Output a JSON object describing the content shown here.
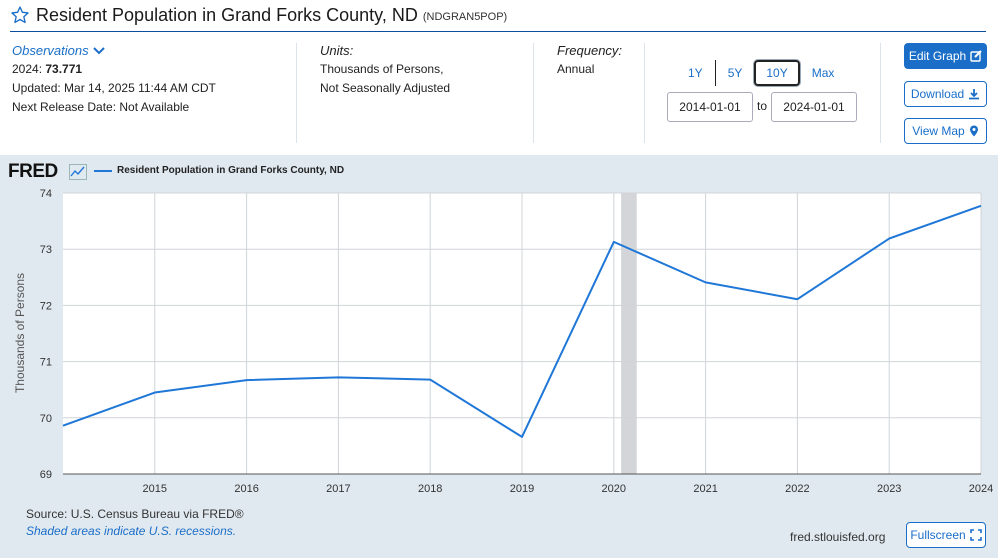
{
  "header": {
    "title": "Resident Population in Grand Forks County, ND",
    "series_code": "(NDGRAN5POP)"
  },
  "observations": {
    "label": "Observations",
    "latest_label": "2024:",
    "latest_value": "73.771",
    "updated": "Updated: Mar 14, 2025 11:44 AM CDT",
    "next_release": "Next Release Date: Not Available"
  },
  "units": {
    "label": "Units:",
    "line1": "Thousands of Persons,",
    "line2": "Not Seasonally Adjusted"
  },
  "frequency": {
    "label": "Frequency:",
    "value": "Annual"
  },
  "range": {
    "tabs": [
      "1Y",
      "5Y",
      "10Y",
      "Max"
    ],
    "active": "10Y",
    "start": "2014-01-01",
    "to_label": "to",
    "end": "2024-01-01"
  },
  "buttons": {
    "edit_graph": "Edit Graph",
    "download": "Download",
    "view_map": "View Map",
    "fullscreen": "Fullscreen"
  },
  "graph": {
    "logo": "FRED",
    "source": "Source: U.S. Census Bureau via FRED®",
    "recession_note": "Shaded areas indicate U.S. recessions.",
    "site": "fred.stlouisfed.org"
  },
  "colors": {
    "line": "#1f77d8",
    "accent": "#1a6ec8",
    "plot_bg": "#e1e9f0",
    "recession": "#d3d5d8"
  },
  "chart_data": {
    "type": "line",
    "title": "",
    "ylabel": "Thousands of Persons",
    "xlabel": "",
    "x": [
      2014,
      2015,
      2016,
      2017,
      2018,
      2019,
      2020,
      2021,
      2022,
      2023,
      2024
    ],
    "series": [
      {
        "name": "Resident Population in Grand Forks County, ND",
        "values": [
          69.86,
          70.45,
          70.67,
          70.72,
          70.68,
          69.66,
          73.13,
          72.41,
          72.11,
          73.19,
          73.771
        ]
      }
    ],
    "x_ticks": [
      2015,
      2016,
      2017,
      2018,
      2019,
      2020,
      2021,
      2022,
      2023,
      2024
    ],
    "y_ticks": [
      69,
      70,
      71,
      72,
      73,
      74
    ],
    "xlim": [
      2014,
      2024
    ],
    "ylim": [
      69,
      74
    ],
    "recessions": [
      [
        2020.08,
        2020.25
      ]
    ],
    "grid": true,
    "legend": "top-left"
  }
}
